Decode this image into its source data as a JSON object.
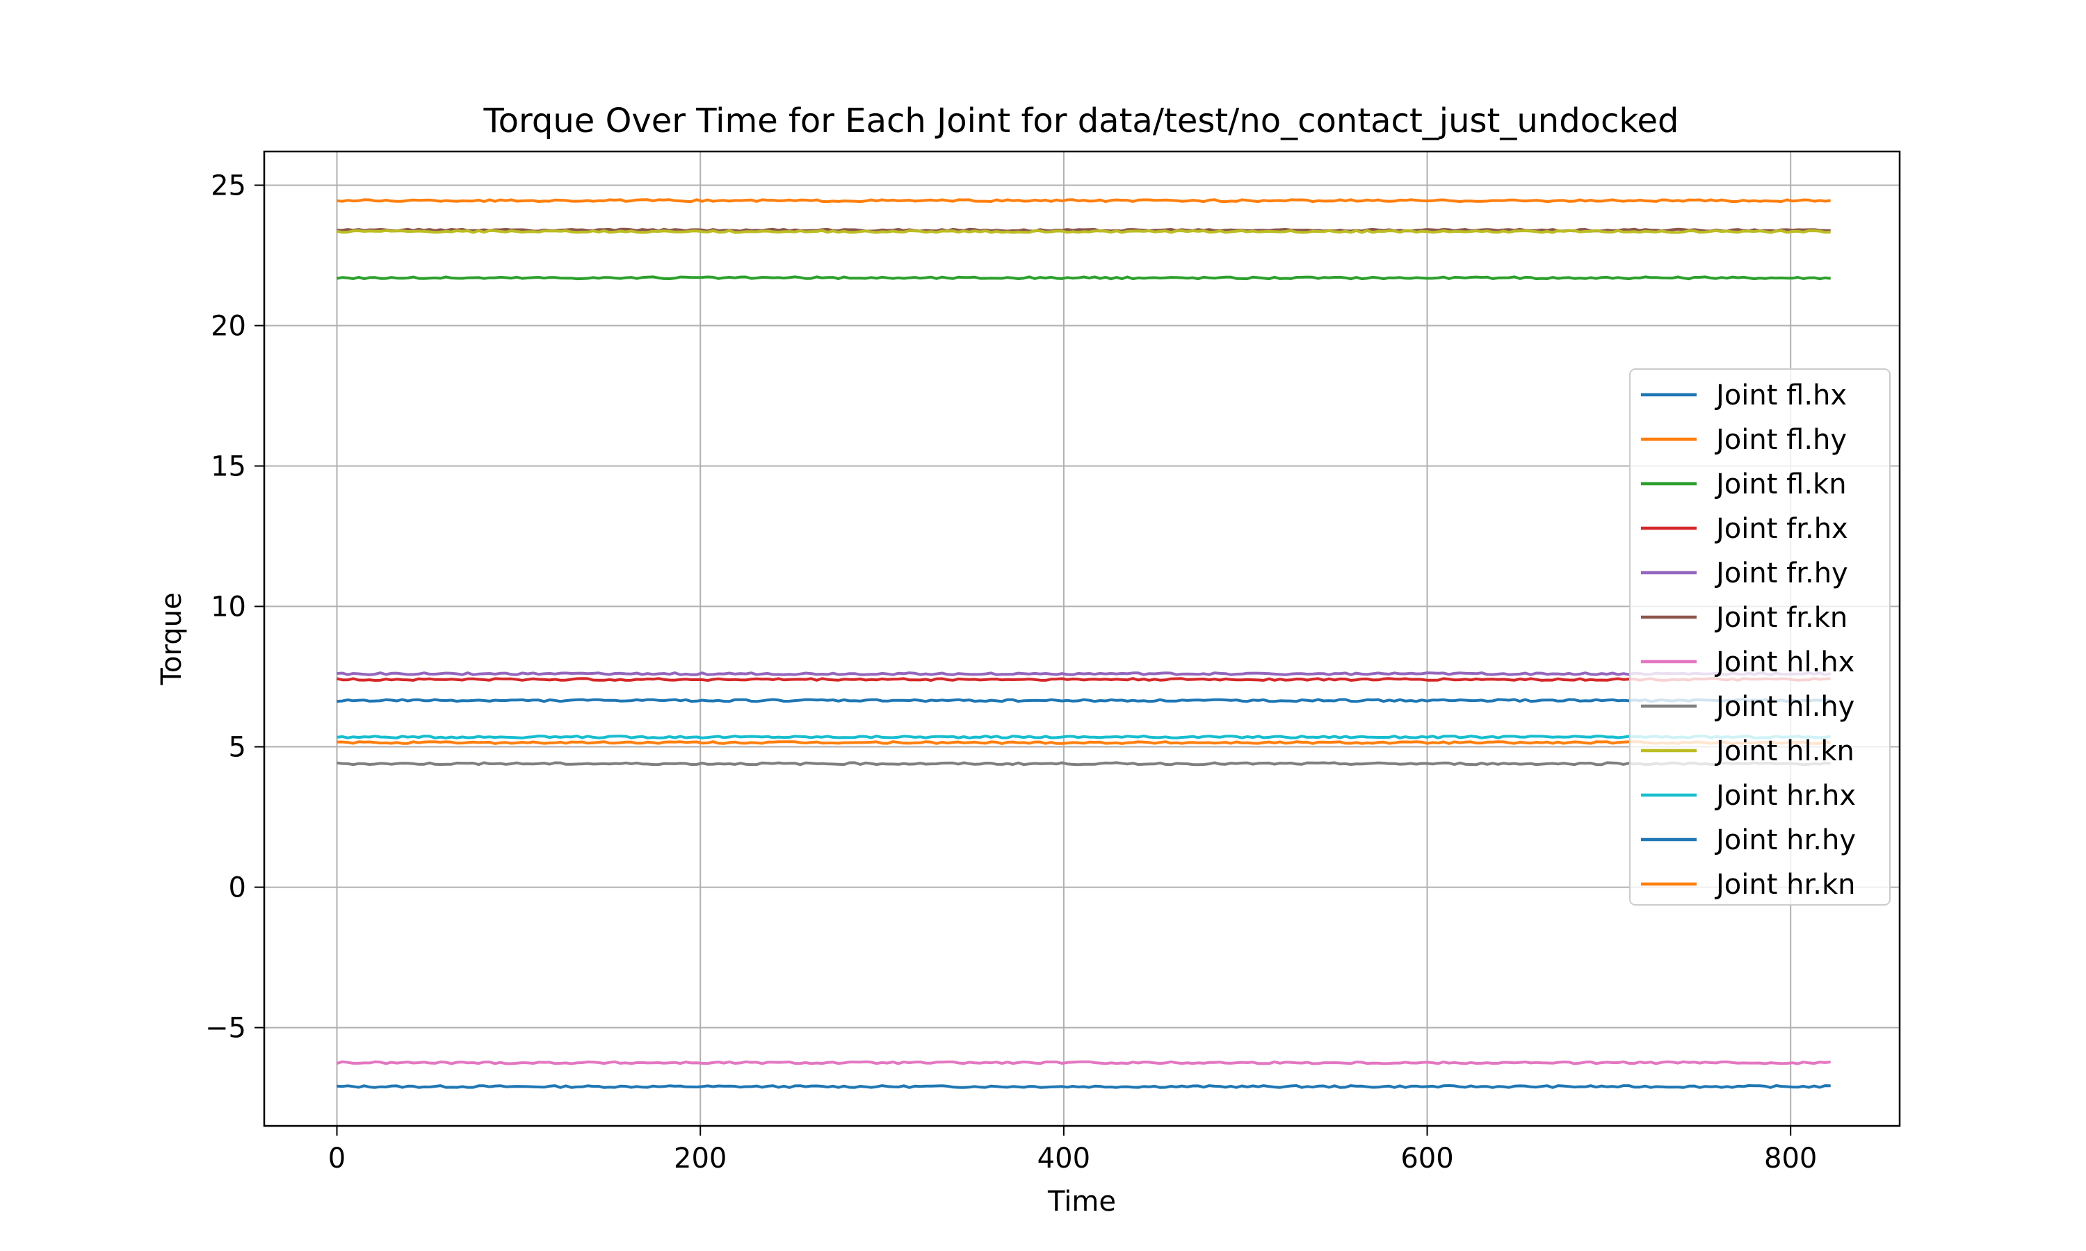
{
  "chart_data": {
    "type": "line",
    "title": "Torque Over Time for Each Joint for data/test/no_contact_just_undocked",
    "xlabel": "Time",
    "ylabel": "Torque",
    "xlim": [
      -40,
      860
    ],
    "ylim": [
      -8.5,
      26.2
    ],
    "x_ticks": [
      0,
      200,
      400,
      600,
      800
    ],
    "y_ticks": [
      -5,
      0,
      5,
      10,
      15,
      20,
      25
    ],
    "y_tick_labels": [
      "−5",
      "0",
      "5",
      "10",
      "15",
      "20",
      "25"
    ],
    "grid": true,
    "legend_position": "center-right",
    "x_range": [
      0,
      822
    ],
    "series": [
      {
        "name": "Joint fl.hx",
        "color": "#1f77b4",
        "value": -7.1
      },
      {
        "name": "Joint fl.hy",
        "color": "#ff7f0e",
        "value": 24.45
      },
      {
        "name": "Joint fl.kn",
        "color": "#2ca02c",
        "value": 21.7
      },
      {
        "name": "Joint fr.hx",
        "color": "#d62728",
        "value": 7.4
      },
      {
        "name": "Joint fr.hy",
        "color": "#9467bd",
        "value": 7.6
      },
      {
        "name": "Joint fr.kn",
        "color": "#8c564b",
        "value": 23.4
      },
      {
        "name": "Joint hl.hx",
        "color": "#e377c2",
        "value": -6.25
      },
      {
        "name": "Joint hl.hy",
        "color": "#7f7f7f",
        "value": 4.4
      },
      {
        "name": "Joint hl.kn",
        "color": "#bcbd22",
        "value": 23.35
      },
      {
        "name": "Joint hr.hx",
        "color": "#17becf",
        "value": 5.35
      },
      {
        "name": "Joint hr.hy",
        "color": "#1f77b4",
        "value": 6.65
      },
      {
        "name": "Joint hr.kn",
        "color": "#ff7f0e",
        "value": 5.15
      }
    ]
  }
}
